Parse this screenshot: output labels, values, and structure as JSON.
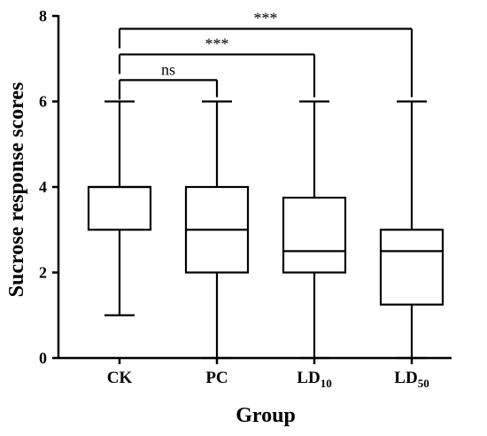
{
  "chart_data": {
    "type": "box",
    "categories": [
      {
        "main": "CK",
        "sub": ""
      },
      {
        "main": "PC",
        "sub": ""
      },
      {
        "main": "LD",
        "sub": "10"
      },
      {
        "main": "LD",
        "sub": "50"
      }
    ],
    "boxes": [
      {
        "min": 1,
        "q1": 3,
        "median": 4,
        "q3": 4,
        "max": 6
      },
      {
        "min": 0,
        "q1": 2,
        "median": 3,
        "q3": 4,
        "max": 6
      },
      {
        "min": 0,
        "q1": 2,
        "median": 2.5,
        "q3": 3.75,
        "max": 6
      },
      {
        "min": 0,
        "q1": 1.25,
        "median": 2.5,
        "q3": 3,
        "max": 6
      }
    ],
    "xlabel": "Group",
    "ylabel": "Sucrose response scores",
    "ylim": [
      0,
      8
    ],
    "yticks": [
      0,
      2,
      4,
      6,
      8
    ],
    "grid": false,
    "annotations": [
      {
        "from": 0,
        "to": 1,
        "y": 6.5,
        "label": "ns"
      },
      {
        "from": 0,
        "to": 2,
        "y": 7.1,
        "label": "***"
      },
      {
        "from": 0,
        "to": 3,
        "y": 7.7,
        "label": "***"
      }
    ]
  }
}
